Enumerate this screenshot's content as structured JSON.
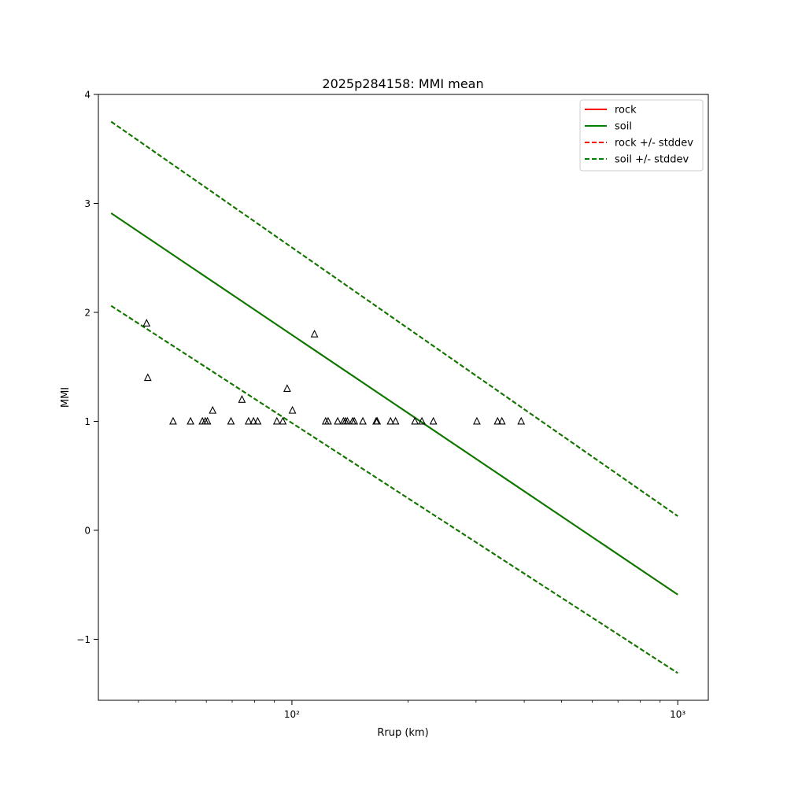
{
  "chart_data": {
    "type": "line",
    "title": "2025p284158: MMI mean",
    "xlabel": "Rrup (km)",
    "ylabel": "MMI",
    "x_scale": "log",
    "xlim": [
      31.5,
      1200
    ],
    "ylim": [
      -1.56,
      4.0
    ],
    "legend_position": "top-right",
    "x_major_ticks": [
      {
        "value": 100,
        "label": "10²"
      },
      {
        "value": 1000,
        "label": "10³"
      }
    ],
    "x_minor_ticks": [
      40,
      50,
      60,
      70,
      80,
      90,
      200,
      300,
      400,
      500,
      600,
      700,
      800,
      900
    ],
    "y_ticks": [
      {
        "value": -1,
        "label": "−1"
      },
      {
        "value": 0,
        "label": "0"
      },
      {
        "value": 1,
        "label": "1"
      },
      {
        "value": 2,
        "label": "2"
      },
      {
        "value": 3,
        "label": "3"
      },
      {
        "value": 4,
        "label": "4"
      }
    ],
    "series": [
      {
        "name": "rock",
        "style": "solid",
        "color": "#ff0000",
        "x": [
          34,
          1000
        ],
        "y": [
          2.91,
          -0.59
        ]
      },
      {
        "name": "soil",
        "style": "solid",
        "color": "#008000",
        "x": [
          34,
          1000
        ],
        "y": [
          2.91,
          -0.59
        ]
      },
      {
        "name": "rock +/- stddev",
        "style": "dashed",
        "color": "#ff0000",
        "x": [
          34,
          1000
        ],
        "y_upper": [
          3.75,
          0.13
        ],
        "y_lower": [
          2.06,
          -1.31
        ]
      },
      {
        "name": "soil +/- stddev",
        "style": "dashed",
        "color": "#008000",
        "x": [
          34,
          1000
        ],
        "y_upper": [
          3.75,
          0.13
        ],
        "y_lower": [
          2.06,
          -1.31
        ]
      }
    ],
    "observations": {
      "marker": "triangle",
      "x": [
        42.0,
        42.3,
        49.2,
        54.6,
        58.6,
        59.6,
        60.4,
        62.3,
        69.5,
        74.2,
        77.2,
        79.5,
        81.5,
        91.4,
        94.7,
        97.2,
        100.3,
        114.4,
        122.3,
        124.1,
        131.4,
        136.0,
        137.6,
        139.2,
        143.6,
        145.1,
        152.7,
        165.3,
        166.3,
        180.1,
        185.6,
        208.3,
        217.2,
        232.6,
        301.5,
        341.2,
        350.1,
        392.8
      ],
      "y": [
        1.9,
        1.4,
        1.0,
        1.0,
        1.0,
        1.0,
        1.0,
        1.1,
        1.0,
        1.2,
        1.0,
        1.0,
        1.0,
        1.0,
        1.0,
        1.3,
        1.1,
        1.8,
        1.0,
        1.0,
        1.0,
        1.0,
        1.0,
        1.0,
        1.0,
        1.0,
        1.0,
        1.0,
        1.0,
        1.0,
        1.0,
        1.0,
        1.0,
        1.0,
        1.0,
        1.0,
        1.0,
        1.0
      ]
    }
  }
}
